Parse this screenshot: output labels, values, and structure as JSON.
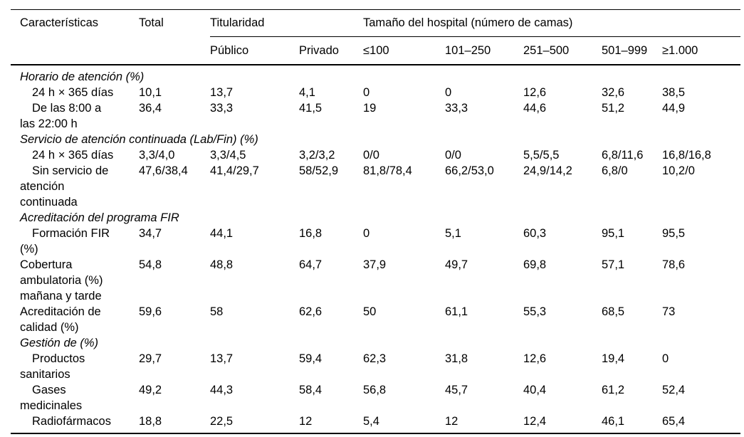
{
  "table": {
    "header": {
      "characteristics": "Características",
      "total": "Total",
      "ownership_group": "Titularidad",
      "size_group": "Tamaño del hospital (número de camas)",
      "subcolumns": [
        "Público",
        "Privado",
        "≤100",
        "101–250",
        "251–500",
        "501–999",
        "≥1.000"
      ]
    },
    "rows": [
      {
        "type": "section",
        "label": "Horario de atención (%)"
      },
      {
        "type": "data",
        "indent": true,
        "label": "24 h × 365 días",
        "values": [
          "10,1",
          "13,7",
          "4,1",
          "0",
          "0",
          "12,6",
          "32,6",
          "38,5"
        ]
      },
      {
        "type": "data",
        "indent": true,
        "label": "De las 8:00 a\nlas 22:00 h",
        "values": [
          "36,4",
          "33,3",
          "41,5",
          "19",
          "33,3",
          "44,6",
          "51,2",
          "44,9"
        ]
      },
      {
        "type": "section",
        "label": "Servicio de atención continuada (Lab/Fin) (%)"
      },
      {
        "type": "data",
        "indent": true,
        "label": "24 h × 365 días",
        "values": [
          "3,3/4,0",
          "3,3/4,5",
          "3,2/3,2",
          "0/0",
          "0/0",
          "5,5/5,5",
          "6,8/11,6",
          "16,8/16,8"
        ]
      },
      {
        "type": "data",
        "indent": true,
        "label": "Sin servicio de\natención\ncontinuada",
        "values": [
          "47,6/38,4",
          "41,4/29,7",
          "58/52,9",
          "81,8/78,4",
          "66,2/53,0",
          "24,9/14,2",
          "6,8/0",
          "10,2/0"
        ]
      },
      {
        "type": "section",
        "label": "Acreditación del programa FIR"
      },
      {
        "type": "data",
        "indent": true,
        "label": "Formación FIR\n(%)",
        "values": [
          "34,7",
          "44,1",
          "16,8",
          "0",
          "5,1",
          "60,3",
          "95,1",
          "95,5"
        ]
      },
      {
        "type": "data",
        "indent": false,
        "label": "Cobertura\nambulatoria (%)\nmañana y tarde",
        "values": [
          "54,8",
          "48,8",
          "64,7",
          "37,9",
          "49,7",
          "69,8",
          "57,1",
          "78,6"
        ]
      },
      {
        "type": "data",
        "indent": false,
        "label": "Acreditación de\ncalidad (%)",
        "values": [
          "59,6",
          "58",
          "62,6",
          "50",
          "61,1",
          "55,3",
          "68,5",
          "73"
        ]
      },
      {
        "type": "section",
        "label": "Gestión de (%)"
      },
      {
        "type": "data",
        "indent": true,
        "label": "Productos\nsanitarios",
        "values": [
          "29,7",
          "13,7",
          "59,4",
          "62,3",
          "31,8",
          "12,6",
          "19,4",
          "0"
        ]
      },
      {
        "type": "data",
        "indent": true,
        "label": "Gases\nmedicinales",
        "values": [
          "49,2",
          "44,3",
          "58,4",
          "56,8",
          "45,7",
          "40,4",
          "61,2",
          "52,4"
        ]
      },
      {
        "type": "data",
        "indent": true,
        "label": "Radiofármacos",
        "values": [
          "18,8",
          "22,5",
          "12",
          "5,4",
          "12",
          "12,4",
          "46,1",
          "65,4"
        ]
      }
    ]
  }
}
